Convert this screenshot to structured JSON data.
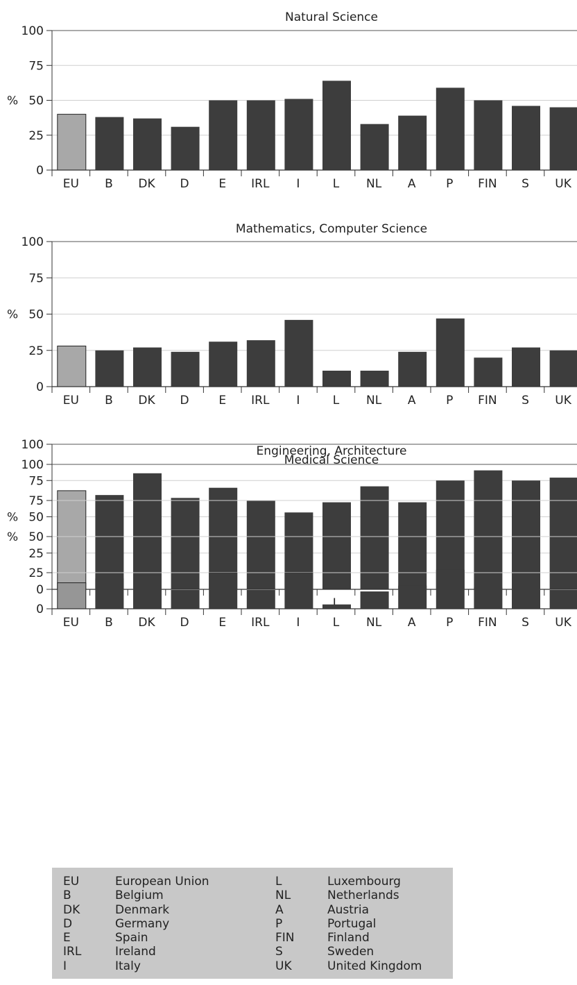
{
  "chart_data": [
    {
      "type": "bar",
      "title": "Natural Science",
      "ylabel": "%",
      "ylim": [
        0,
        100
      ],
      "yticks": [
        0,
        25,
        50,
        75,
        100
      ],
      "grid": true,
      "categories": [
        "EU",
        "B",
        "DK",
        "D",
        "E",
        "IRL",
        "I",
        "L",
        "NL",
        "A",
        "P",
        "FIN",
        "S",
        "UK"
      ],
      "values": [
        40,
        38,
        37,
        31,
        50,
        50,
        51,
        64,
        33,
        39,
        59,
        50,
        46,
        45
      ],
      "colors": {
        "highlight": "#a8a8a8",
        "bar": "#3d3d3d"
      }
    },
    {
      "type": "bar",
      "title": "Mathematics, Computer Science",
      "ylabel": "%",
      "ylim": [
        0,
        100
      ],
      "yticks": [
        0,
        25,
        50,
        75,
        100
      ],
      "grid": true,
      "categories": [
        "EU",
        "B",
        "DK",
        "D",
        "E",
        "IRL",
        "I",
        "L",
        "NL",
        "A",
        "P",
        "FIN",
        "S",
        "UK"
      ],
      "values": [
        28,
        25,
        27,
        24,
        31,
        32,
        46,
        11,
        11,
        24,
        47,
        20,
        27,
        25
      ],
      "colors": {
        "highlight": "#a8a8a8",
        "bar": "#3d3d3d"
      }
    },
    {
      "type": "bar",
      "title": "Medical Science",
      "ylabel": "%",
      "ylim": [
        0,
        100
      ],
      "yticks": [
        0,
        25,
        50,
        75,
        100
      ],
      "grid": true,
      "categories": [
        "EU",
        "B",
        "DK",
        "D",
        "E",
        "IRL",
        "I",
        "L",
        "NL",
        "A",
        "P",
        "FIN",
        "S",
        "UK"
      ],
      "values": [
        68,
        65,
        80,
        63,
        70,
        61,
        53,
        60,
        71,
        60,
        75,
        82,
        75,
        77
      ],
      "colors": {
        "highlight": "#a8a8a8",
        "bar": "#3d3d3d"
      }
    },
    {
      "type": "bar",
      "title": "Engineering, Architecture",
      "ylabel": "%",
      "ylim": [
        0,
        100
      ],
      "yticks": [
        0,
        25,
        50,
        75,
        100
      ],
      "grid": true,
      "categories": [
        "EU",
        "B",
        "DK",
        "D",
        "E",
        "IRL",
        "I",
        "L",
        "NL",
        "A",
        "P",
        "FIN",
        "S",
        "UK"
      ],
      "values": [
        18,
        21,
        23,
        13,
        25,
        13,
        25,
        3,
        12,
        16,
        27,
        15,
        20,
        13
      ],
      "colors": {
        "highlight": "#969696",
        "bar": "#3d3d3d"
      }
    }
  ],
  "legend": {
    "background": "#c8c8c8",
    "items": [
      {
        "code": "EU",
        "name": "European Union"
      },
      {
        "code": "B",
        "name": "Belgium"
      },
      {
        "code": "DK",
        "name": "Denmark"
      },
      {
        "code": "D",
        "name": "Germany"
      },
      {
        "code": "E",
        "name": "Spain"
      },
      {
        "code": "IRL",
        "name": "Ireland"
      },
      {
        "code": "I",
        "name": "Italy"
      },
      {
        "code": "L",
        "name": "Luxembourg"
      },
      {
        "code": "NL",
        "name": "Netherlands"
      },
      {
        "code": "A",
        "name": "Austria"
      },
      {
        "code": "P",
        "name": "Portugal"
      },
      {
        "code": "FIN",
        "name": "Finland"
      },
      {
        "code": "S",
        "name": "Sweden"
      },
      {
        "code": "UK",
        "name": "United Kingdom"
      }
    ]
  }
}
